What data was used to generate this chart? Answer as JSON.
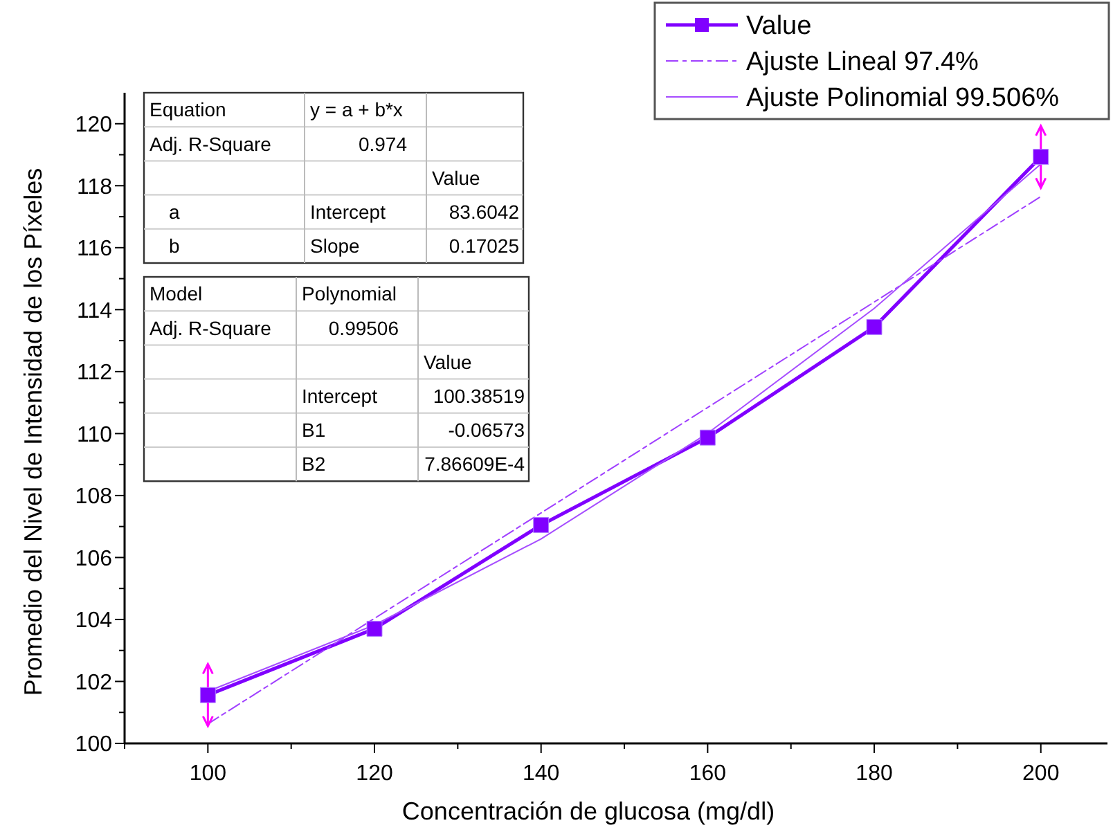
{
  "chart_data": {
    "type": "line",
    "xlabel": "Concentración de glucosa (mg/dl)",
    "ylabel": "Promedio del Nivel de Intensidad de los Píxeles",
    "xlim": [
      90,
      208
    ],
    "ylim": [
      100,
      121
    ],
    "xticks": [
      {
        "value": 90,
        "label": null
      },
      100,
      {
        "value": 110,
        "label": null
      },
      120,
      {
        "value": 130,
        "label": null
      },
      140,
      {
        "value": 150,
        "label": null
      },
      160,
      {
        "value": 170,
        "label": null
      },
      180,
      {
        "value": 190,
        "label": null
      },
      200
    ],
    "yticks": [
      100,
      {
        "value": 101,
        "label": null
      },
      102,
      {
        "value": 103,
        "label": null
      },
      104,
      {
        "value": 105,
        "label": null
      },
      106,
      {
        "value": 107,
        "label": null
      },
      108,
      {
        "value": 109,
        "label": null
      },
      110,
      {
        "value": 111,
        "label": null
      },
      112,
      {
        "value": 113,
        "label": null
      },
      114,
      {
        "value": 115,
        "label": null
      },
      116,
      {
        "value": 117,
        "label": null
      },
      118,
      {
        "value": 119,
        "label": null
      },
      120
    ],
    "legend": "top right",
    "grid": false,
    "series": [
      {
        "name": "Value",
        "color": "#8000ff",
        "x": [
          100,
          120,
          140,
          160,
          180,
          200
        ],
        "values": [
          101.56,
          103.7,
          107.05,
          109.87,
          113.44,
          118.93
        ],
        "errors": [
          1,
          null,
          null,
          null,
          null,
          1
        ],
        "marker": "square",
        "line_style": "solid"
      },
      {
        "name": "Ajuste Lineal 97.4%",
        "color": "#a040ff",
        "x": [
          100,
          200
        ],
        "values": [
          100.63,
          117.65
        ],
        "line_style": "dashed"
      },
      {
        "name": "Ajuste Polinomial 99.506%",
        "color": "#a64dff",
        "x": [
          100,
          120,
          140,
          160,
          180,
          200
        ],
        "values": [
          101.68,
          103.82,
          106.6,
          110.01,
          114.04,
          118.7
        ],
        "line_style": "solid"
      }
    ],
    "annotations": [
      "Equation",
      "y = a + b*x",
      "Adj. R-Square",
      "0.974",
      "Value",
      "a",
      "Intercept",
      "83.6042",
      "b",
      "Slope",
      "0.17025",
      "Model",
      "Polynomial",
      "Adj. R-Square",
      "0.99506",
      "Value",
      "Intercept",
      "100.38519",
      "B1",
      "-0.06573",
      "B2",
      "7.86609E-4"
    ]
  }
}
